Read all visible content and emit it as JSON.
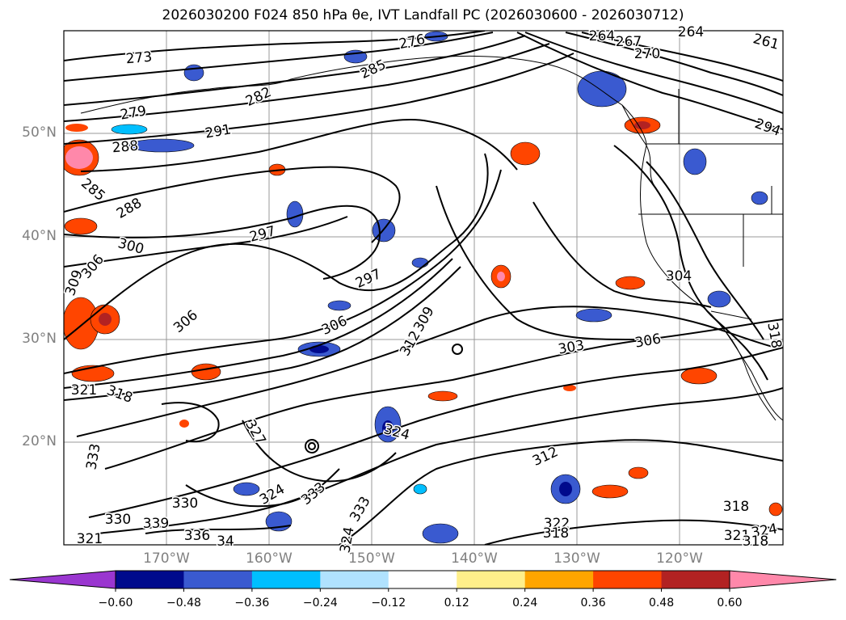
{
  "title": "2026030200 F024 850 hPa θe, IVT Landfall PC (2026030600 - 2026030712)",
  "map": {
    "lat_labels": [
      "50°N",
      "40°N",
      "30°N",
      "20°N"
    ],
    "lon_labels": [
      "170°W",
      "160°W",
      "150°W",
      "140°W",
      "130°W",
      "120°W"
    ],
    "contour_labels": [
      "273",
      "276",
      "285",
      "282",
      "279",
      "291",
      "288",
      "285",
      "288",
      "264",
      "267",
      "270",
      "264",
      "261",
      "294",
      "297",
      "300",
      "306",
      "309",
      "297",
      "306",
      "306",
      "309",
      "312",
      "303",
      "306",
      "304",
      "318",
      "321",
      "318",
      "327",
      "324",
      "312",
      "333",
      "318",
      "324",
      "330",
      "333",
      "330",
      "339",
      "336",
      "34",
      "321",
      "322",
      "324",
      "318",
      "321",
      "324",
      "318",
      "333"
    ]
  },
  "colorbar": {
    "ticks": [
      "−0.60",
      "−0.48",
      "−0.36",
      "−0.24",
      "−0.12",
      "0.12",
      "0.24",
      "0.36",
      "0.48",
      "0.60"
    ],
    "colors": [
      "#9a36d0",
      "#000a8c",
      "#3a5ad0",
      "#00bfff",
      "#b0e2ff",
      "#ffffff",
      "#ffef8a",
      "#ffa500",
      "#ff4500",
      "#b22222",
      "#ff88aa"
    ]
  }
}
